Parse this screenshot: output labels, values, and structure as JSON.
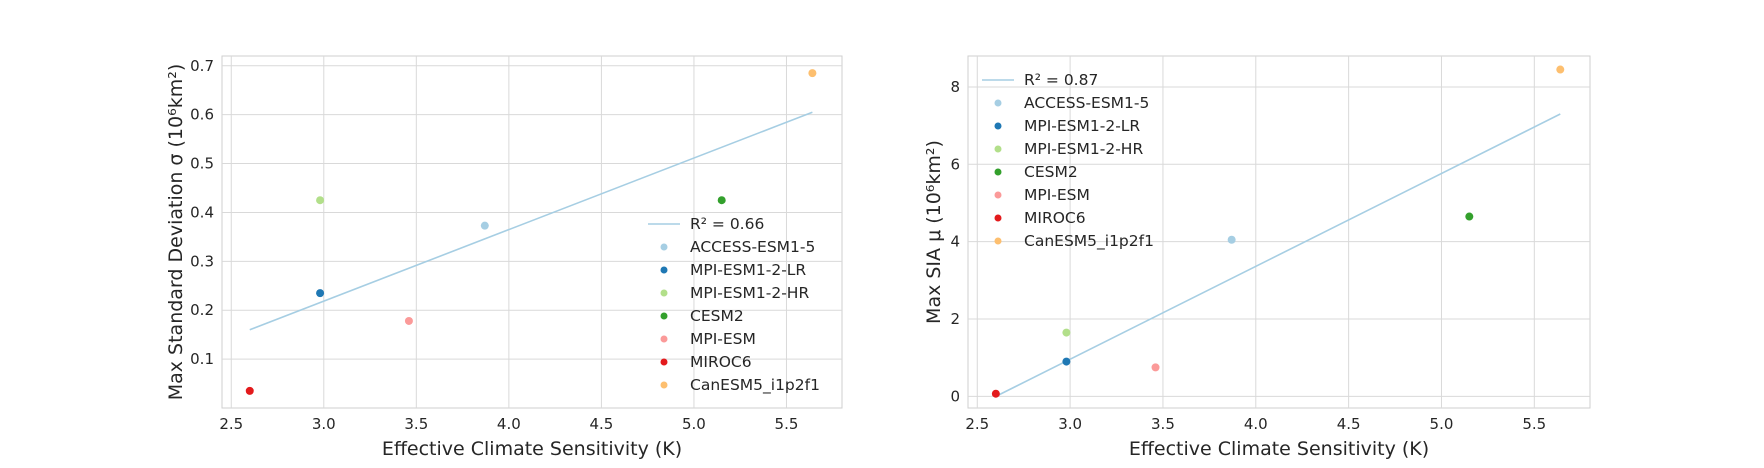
{
  "chart_data": [
    {
      "type": "scatter",
      "xlabel": "Effective Climate Sensitivity (K)",
      "ylabel": "Max Standard Deviation σ (10⁶km²)",
      "xlim": [
        2.45,
        5.8
      ],
      "ylim": [
        0.0,
        0.72
      ],
      "xticks": [
        2.5,
        3.0,
        3.5,
        4.0,
        4.5,
        5.0,
        5.5
      ],
      "xtick_labels": [
        "2.5",
        "3.0",
        "3.5",
        "4.0",
        "4.5",
        "5.0",
        "5.5"
      ],
      "yticks": [
        0.1,
        0.2,
        0.3,
        0.4,
        0.5,
        0.6,
        0.7
      ],
      "ytick_labels": [
        "0.1",
        "0.2",
        "0.3",
        "0.4",
        "0.5",
        "0.6",
        "0.7"
      ],
      "grid": true,
      "legend_position": "lower-right",
      "fit_line": {
        "label": "R² = 0.66",
        "x": [
          2.6,
          5.64
        ],
        "y": [
          0.16,
          0.605
        ],
        "color": "#a6cee3"
      },
      "series": [
        {
          "name": "ACCESS-ESM1-5",
          "x": 3.87,
          "y": 0.373,
          "color": "#a6cee3"
        },
        {
          "name": "MPI-ESM1-2-LR",
          "x": 2.98,
          "y": 0.235,
          "color": "#1f78b4"
        },
        {
          "name": "MPI-ESM1-2-HR",
          "x": 2.98,
          "y": 0.425,
          "color": "#b2df8a"
        },
        {
          "name": "CESM2",
          "x": 5.15,
          "y": 0.425,
          "color": "#33a02c"
        },
        {
          "name": "MPI-ESM",
          "x": 3.46,
          "y": 0.178,
          "color": "#fb9a99"
        },
        {
          "name": "MIROC6",
          "x": 2.6,
          "y": 0.035,
          "color": "#e31a1c"
        },
        {
          "name": "CanESM5_i1p2f1",
          "x": 5.64,
          "y": 0.685,
          "color": "#fdbf6f"
        }
      ]
    },
    {
      "type": "scatter",
      "xlabel": "Effective Climate Sensitivity (K)",
      "ylabel": "Max SIA μ (10⁶km²)",
      "xlim": [
        2.45,
        5.8
      ],
      "ylim": [
        -0.3,
        8.8
      ],
      "xticks": [
        2.5,
        3.0,
        3.5,
        4.0,
        4.5,
        5.0,
        5.5
      ],
      "xtick_labels": [
        "2.5",
        "3.0",
        "3.5",
        "4.0",
        "4.5",
        "5.0",
        "5.5"
      ],
      "yticks": [
        0,
        2,
        4,
        6,
        8
      ],
      "ytick_labels": [
        "0",
        "2",
        "4",
        "6",
        "8"
      ],
      "grid": true,
      "legend_position": "upper-left",
      "fit_line": {
        "label": "R² = 0.87",
        "x": [
          2.6,
          5.64
        ],
        "y": [
          0.0,
          7.3
        ],
        "color": "#a6cee3"
      },
      "series": [
        {
          "name": "ACCESS-ESM1-5",
          "x": 3.87,
          "y": 4.05,
          "color": "#a6cee3"
        },
        {
          "name": "MPI-ESM1-2-LR",
          "x": 2.98,
          "y": 0.9,
          "color": "#1f78b4"
        },
        {
          "name": "MPI-ESM1-2-HR",
          "x": 2.98,
          "y": 1.65,
          "color": "#b2df8a"
        },
        {
          "name": "CESM2",
          "x": 5.15,
          "y": 4.65,
          "color": "#33a02c"
        },
        {
          "name": "MPI-ESM",
          "x": 3.46,
          "y": 0.75,
          "color": "#fb9a99"
        },
        {
          "name": "MIROC6",
          "x": 2.6,
          "y": 0.07,
          "color": "#e31a1c"
        },
        {
          "name": "CanESM5_i1p2f1",
          "x": 5.64,
          "y": 8.45,
          "color": "#fdbf6f"
        }
      ]
    }
  ]
}
